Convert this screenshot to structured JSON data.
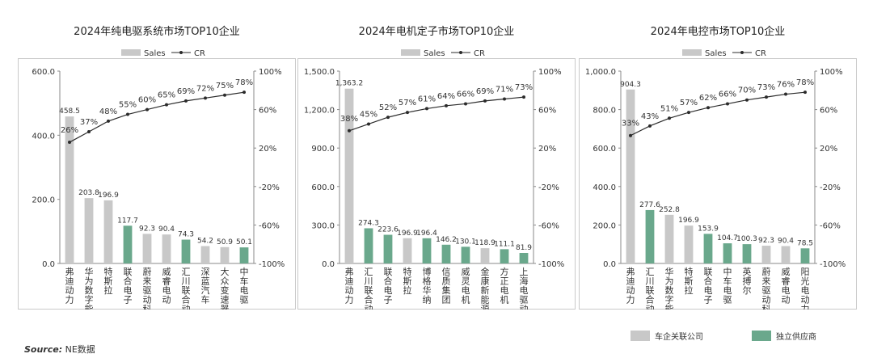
{
  "legend": {
    "sales": "Sales",
    "cr": "CR"
  },
  "colors": {
    "company_related": "#c8c8c8",
    "independent": "#6aa88c",
    "line": "#2b2b2b"
  },
  "source": {
    "label": "Source:",
    "text": "NE数据"
  },
  "bottom_legend": {
    "company_related": "车企关联公司",
    "independent": "独立供应商"
  },
  "chart_data": [
    {
      "type": "bar",
      "title": "2024年纯电驱系统市场TOP10企业",
      "categories": [
        "弗迪动力",
        "华为数字能源",
        "特斯拉",
        "联合电子",
        "蔚来驱动科技",
        "威睿电动",
        "汇川联合动力",
        "深蓝汽车",
        "大众变速器",
        "中车电驱"
      ],
      "series": [
        {
          "name": "Sales",
          "axis": "left",
          "values": [
            458.5,
            203.8,
            196.9,
            117.7,
            92.3,
            90.4,
            74.3,
            54.2,
            50.9,
            50.1
          ],
          "labels": [
            "458.5",
            "203.8",
            "196.9",
            "117.7",
            "92.3",
            "90.4",
            "74.3",
            "54.2",
            "50.9",
            "50.1"
          ]
        },
        {
          "name": "CR",
          "axis": "right",
          "values": [
            26,
            37,
            48,
            55,
            60,
            65,
            69,
            72,
            75,
            78
          ]
        }
      ],
      "bar_groups": [
        "company",
        "company",
        "company",
        "independent",
        "company",
        "company",
        "independent",
        "company",
        "company",
        "independent"
      ],
      "ylim": [
        0,
        600
      ],
      "yticks": [
        "0.0",
        "200.0",
        "400.0",
        "600.0"
      ],
      "y2lim": [
        -100,
        100
      ],
      "y2ticks": [
        "-100%",
        "-60%",
        "-20%",
        "20%",
        "60%",
        "100%"
      ]
    },
    {
      "type": "bar",
      "title": "2024年电机定子市场TOP10企业",
      "categories": [
        "弗迪动力",
        "汇川联合动力",
        "联合电子",
        "特斯拉",
        "博格华纳",
        "信质集团",
        "威灵电机",
        "金康新能源",
        "方正电机",
        "上海电驱动"
      ],
      "series": [
        {
          "name": "Sales",
          "axis": "left",
          "values": [
            1363.2,
            274.3,
            223.6,
            196.9,
            196.4,
            146.2,
            130.1,
            118.9,
            111.1,
            81.9
          ],
          "labels": [
            "1,363.2",
            "274.3",
            "223.6",
            "196.9",
            "196.4",
            "146.2",
            "130.1",
            "118.9",
            "111.1",
            "81.9"
          ]
        },
        {
          "name": "CR",
          "axis": "right",
          "values": [
            38,
            45,
            52,
            57,
            61,
            64,
            66,
            69,
            71,
            73
          ]
        }
      ],
      "bar_groups": [
        "company",
        "independent",
        "independent",
        "company",
        "independent",
        "independent",
        "independent",
        "company",
        "independent",
        "independent"
      ],
      "ylim": [
        0,
        1500
      ],
      "yticks": [
        "0.0",
        "300.0",
        "600.0",
        "900.0",
        "1,200.0",
        "1,500.0"
      ],
      "y2lim": [
        -100,
        100
      ],
      "y2ticks": [
        "-100%",
        "-60%",
        "-20%",
        "20%",
        "60%",
        "100%"
      ]
    },
    {
      "type": "bar",
      "title": "2024年电控市场TOP10企业",
      "categories": [
        "弗迪动力",
        "汇川联合动力",
        "华为数字能源",
        "特斯拉",
        "联合电子",
        "中车电驱",
        "英搏尔",
        "蔚来驱动科技",
        "威睿电动",
        "阳光电动力"
      ],
      "series": [
        {
          "name": "Sales",
          "axis": "left",
          "values": [
            904.3,
            277.6,
            252.8,
            196.9,
            153.9,
            104.7,
            100.3,
            92.3,
            90.4,
            78.5
          ],
          "labels": [
            "904.3",
            "277.6",
            "252.8",
            "196.9",
            "153.9",
            "104.7",
            "100.3",
            "92.3",
            "90.4",
            "78.5"
          ]
        },
        {
          "name": "CR",
          "axis": "right",
          "values": [
            33,
            43,
            51,
            57,
            62,
            66,
            70,
            73,
            76,
            78
          ]
        }
      ],
      "bar_groups": [
        "company",
        "independent",
        "company",
        "company",
        "independent",
        "independent",
        "independent",
        "company",
        "company",
        "independent"
      ],
      "ylim": [
        0,
        1000
      ],
      "yticks": [
        "0.0",
        "200.0",
        "400.0",
        "600.0",
        "800.0",
        "1,000.0"
      ],
      "y2lim": [
        -100,
        100
      ],
      "y2ticks": [
        "-100%",
        "-60%",
        "-20%",
        "20%",
        "60%",
        "100%"
      ]
    }
  ]
}
